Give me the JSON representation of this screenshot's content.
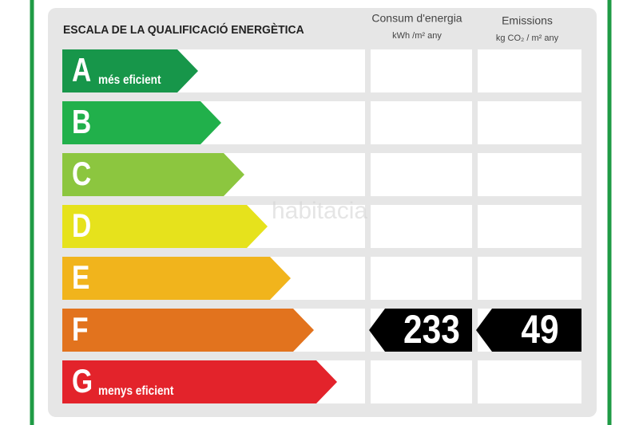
{
  "header": {
    "title": "ESCALA DE LA QUALIFICACIÓ ENERGÈTICA",
    "columns": [
      {
        "title": "Consum d'energia",
        "unit": "kWh /m² any"
      },
      {
        "title": "Emissions",
        "unit": "kg CO₂ / m² any"
      }
    ]
  },
  "ratings": [
    {
      "letter": "A",
      "label": "més eficient",
      "color": "#17964a"
    },
    {
      "letter": "B",
      "color": "#21b04b"
    },
    {
      "letter": "C",
      "color": "#8cc63f"
    },
    {
      "letter": "D",
      "color": "#e6e21c"
    },
    {
      "letter": "E",
      "color": "#f1b41c"
    },
    {
      "letter": "F",
      "color": "#e2731e"
    },
    {
      "letter": "G",
      "label": "menys eficient",
      "color": "#e3232b"
    }
  ],
  "results": [
    {
      "class": "F",
      "value": 233
    },
    {
      "class": "F",
      "value": 49
    }
  ],
  "watermark": "habitacia"
}
